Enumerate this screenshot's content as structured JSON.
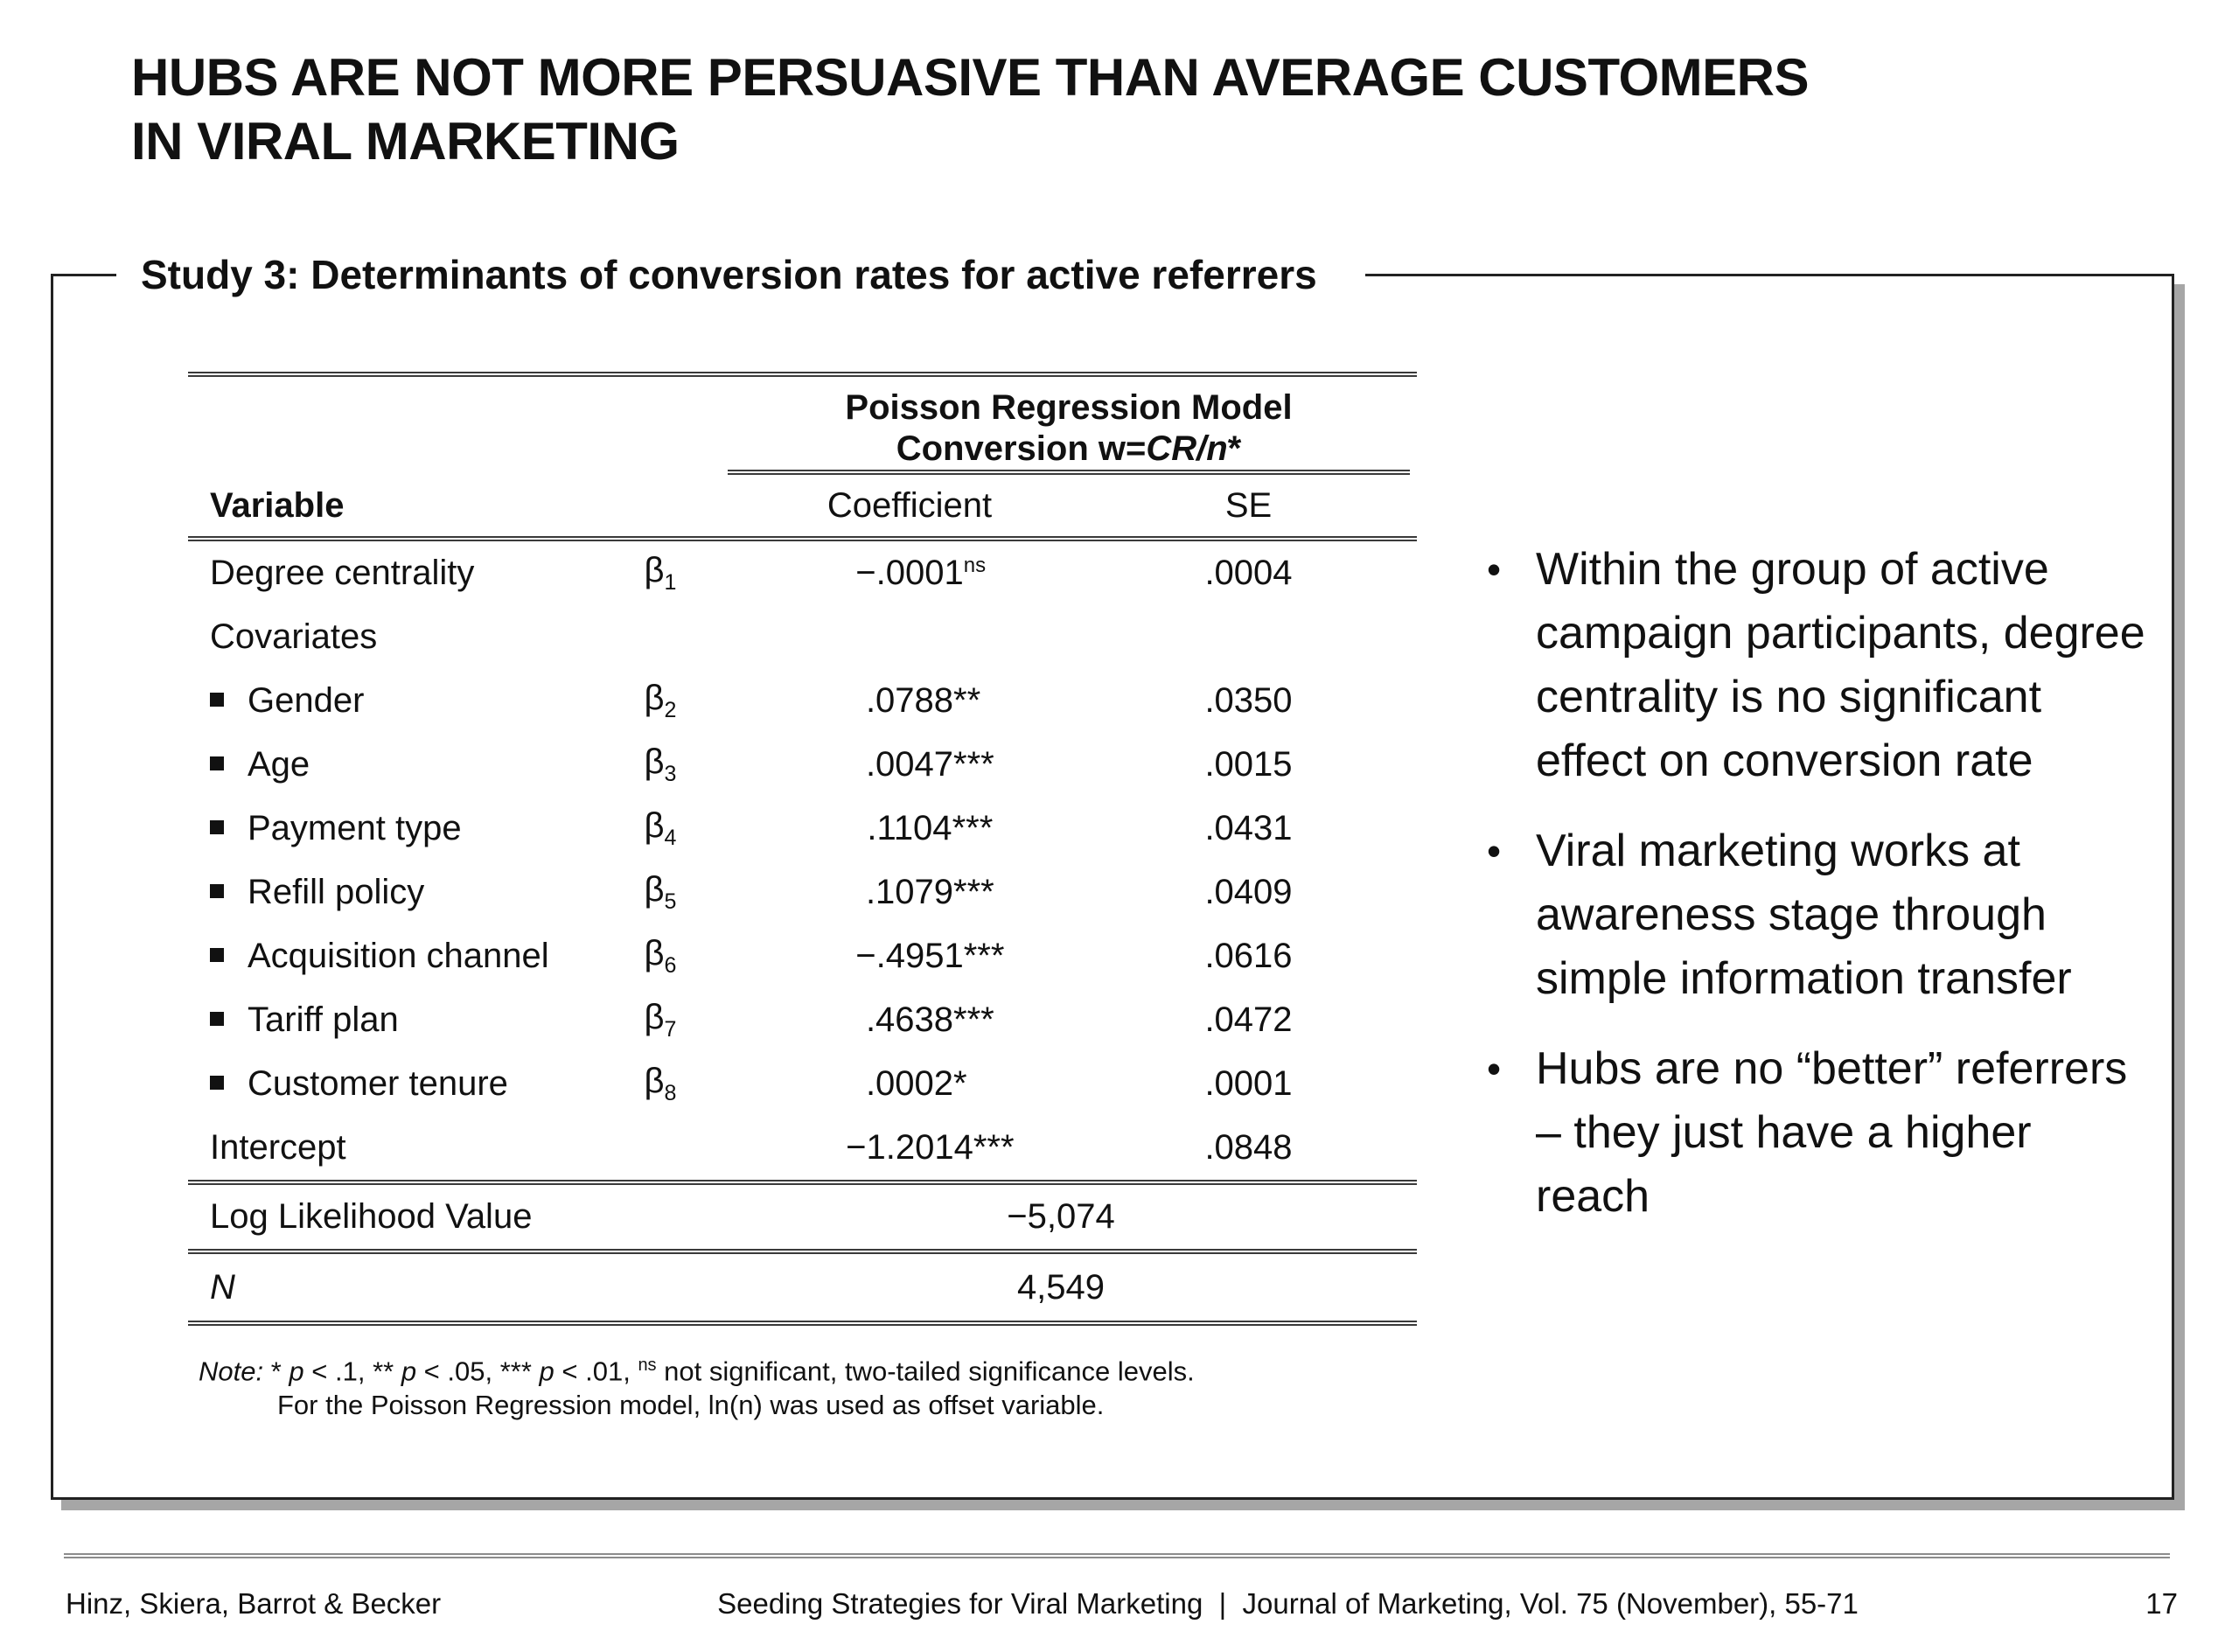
{
  "slide": {
    "title_line1": "HUBS ARE NOT MORE PERSUASIVE THAN AVERAGE CUSTOMERS",
    "title_line2": "IN VIRAL MARKETING",
    "section_heading": "Study 3: Determinants of conversion rates for active referrers"
  },
  "table": {
    "spanner": {
      "line1": "Poisson Regression Model",
      "line2_prefix": "Conversion w=",
      "line2_italic": "CR/n",
      "line2_suffix": "*"
    },
    "headers": {
      "variable": "Variable",
      "coefficient": "Coefficient",
      "se": "SE"
    },
    "beta_symbol": "β",
    "rows": [
      {
        "label": "Degree centrality",
        "bullet": false,
        "beta_sub": "1",
        "coef": "−.0001",
        "coef_sup": "ns",
        "stars": "",
        "se": ".0004"
      },
      {
        "label": "Covariates",
        "bullet": false,
        "beta_sub": "",
        "coef": "",
        "coef_sup": "",
        "stars": "",
        "se": ""
      },
      {
        "label": "Gender",
        "bullet": true,
        "beta_sub": "2",
        "coef": ".0788",
        "coef_sup": "",
        "stars": "**",
        "se": ".0350"
      },
      {
        "label": "Age",
        "bullet": true,
        "beta_sub": "3",
        "coef": ".0047",
        "coef_sup": "",
        "stars": "***",
        "se": ".0015"
      },
      {
        "label": "Payment type",
        "bullet": true,
        "beta_sub": "4",
        "coef": ".1104",
        "coef_sup": "",
        "stars": "***",
        "se": ".0431"
      },
      {
        "label": "Refill policy",
        "bullet": true,
        "beta_sub": "5",
        "coef": ".1079",
        "coef_sup": "",
        "stars": "***",
        "se": ".0409"
      },
      {
        "label": "Acquisition channel",
        "bullet": true,
        "beta_sub": "6",
        "coef": "−.4951",
        "coef_sup": "",
        "stars": "***",
        "se": ".0616"
      },
      {
        "label": "Tariff plan",
        "bullet": true,
        "beta_sub": "7",
        "coef": ".4638",
        "coef_sup": "",
        "stars": "***",
        "se": ".0472"
      },
      {
        "label": "Customer tenure",
        "bullet": true,
        "beta_sub": "8",
        "coef": ".0002",
        "coef_sup": "",
        "stars": "*",
        "se": ".0001"
      },
      {
        "label": "Intercept",
        "bullet": false,
        "beta_sub": "",
        "coef": "−1.2014",
        "coef_sup": "",
        "stars": "***",
        "se": ".0848"
      }
    ],
    "summary_rows": [
      {
        "label": "Log Likelihood Value",
        "value": "−5,074"
      },
      {
        "label": "N",
        "value": "4,549"
      }
    ],
    "note_line1": [
      {
        "text": "Note:",
        "style": "italic"
      },
      {
        "text": " * ",
        "style": ""
      },
      {
        "text": "p",
        "style": "italic"
      },
      {
        "text": " < .1, ** ",
        "style": ""
      },
      {
        "text": "p",
        "style": "italic"
      },
      {
        "text": " < .05,  *** ",
        "style": ""
      },
      {
        "text": "p",
        "style": "italic"
      },
      {
        "text": " < .01,  ",
        "style": ""
      },
      {
        "text": "ns",
        "style": "sup"
      },
      {
        "text": " not significant, two-tailed significance levels.",
        "style": ""
      }
    ],
    "note_line2": "For the Poisson Regression model, ln(n) was used as offset variable."
  },
  "bullets": [
    "Within the group of active campaign participants, degree centrality is no significant effect on conversion rate",
    "Viral marketing works at awareness stage through simple information transfer",
    "Hubs are no “better” referrers – they just have a higher reach"
  ],
  "icons": {
    "bullet_dot": "•"
  },
  "footer": {
    "authors": "Hinz, Skiera, Barrot & Becker",
    "center": "Seeding Strategies for Viral Marketing  |  Journal of Marketing, Vol. 75 (November), 55-71",
    "page": "17"
  },
  "colors": {
    "text": "#111111",
    "rule_dark": "#3a3a3a",
    "rule_gray": "#8c8c8c",
    "box_border": "#222222",
    "box_shadow": "#a6a6a6"
  }
}
